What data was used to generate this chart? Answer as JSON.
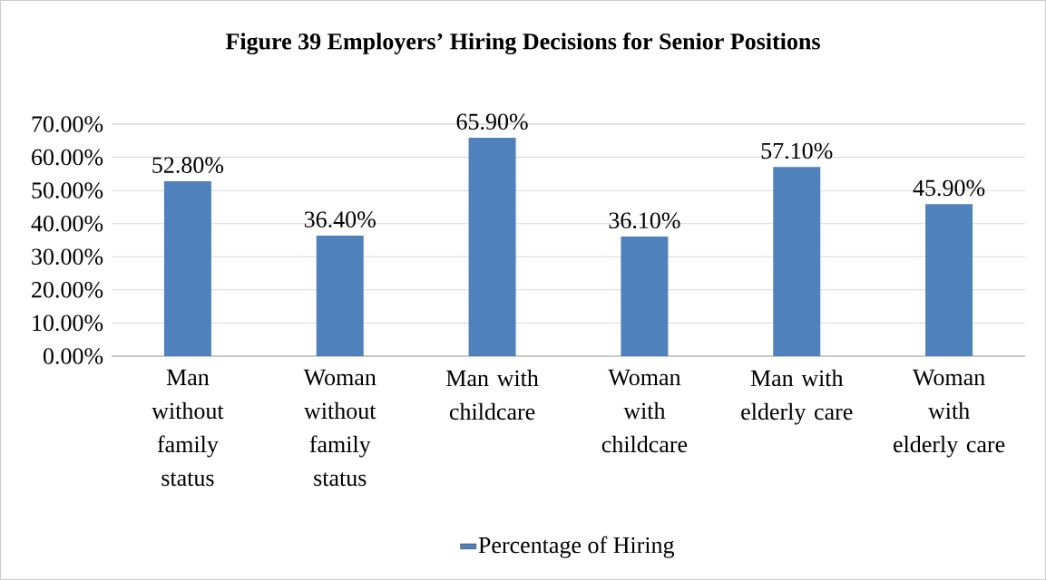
{
  "chart_data": {
    "type": "bar",
    "title": "Figure 39 Employers’ Hiring Decisions for Senior Positions",
    "categories": [
      "Man without family status",
      "Woman without family status",
      "Man with childcare",
      "Woman with childcare",
      "Man with elderly care",
      "Woman with elderly care"
    ],
    "series": [
      {
        "name": "Percentage of Hiring",
        "color": "#4f81bd",
        "values": [
          52.8,
          36.4,
          65.9,
          36.1,
          57.1,
          45.9
        ],
        "value_labels": [
          "52.80%",
          "36.40%",
          "65.90%",
          "36.10%",
          "57.10%",
          "45.90%"
        ]
      }
    ],
    "ylim": [
      0,
      70
    ],
    "yticks": [
      {
        "value": 0,
        "label": "0.00%"
      },
      {
        "value": 10,
        "label": "10.00%"
      },
      {
        "value": 20,
        "label": "20.00%"
      },
      {
        "value": 30,
        "label": "30.00%"
      },
      {
        "value": 40,
        "label": "40.00%"
      },
      {
        "value": 50,
        "label": "50.00%"
      },
      {
        "value": 60,
        "label": "60.00%"
      },
      {
        "value": 70,
        "label": "70.00%"
      }
    ],
    "grid": "y",
    "legend": "bottom"
  }
}
